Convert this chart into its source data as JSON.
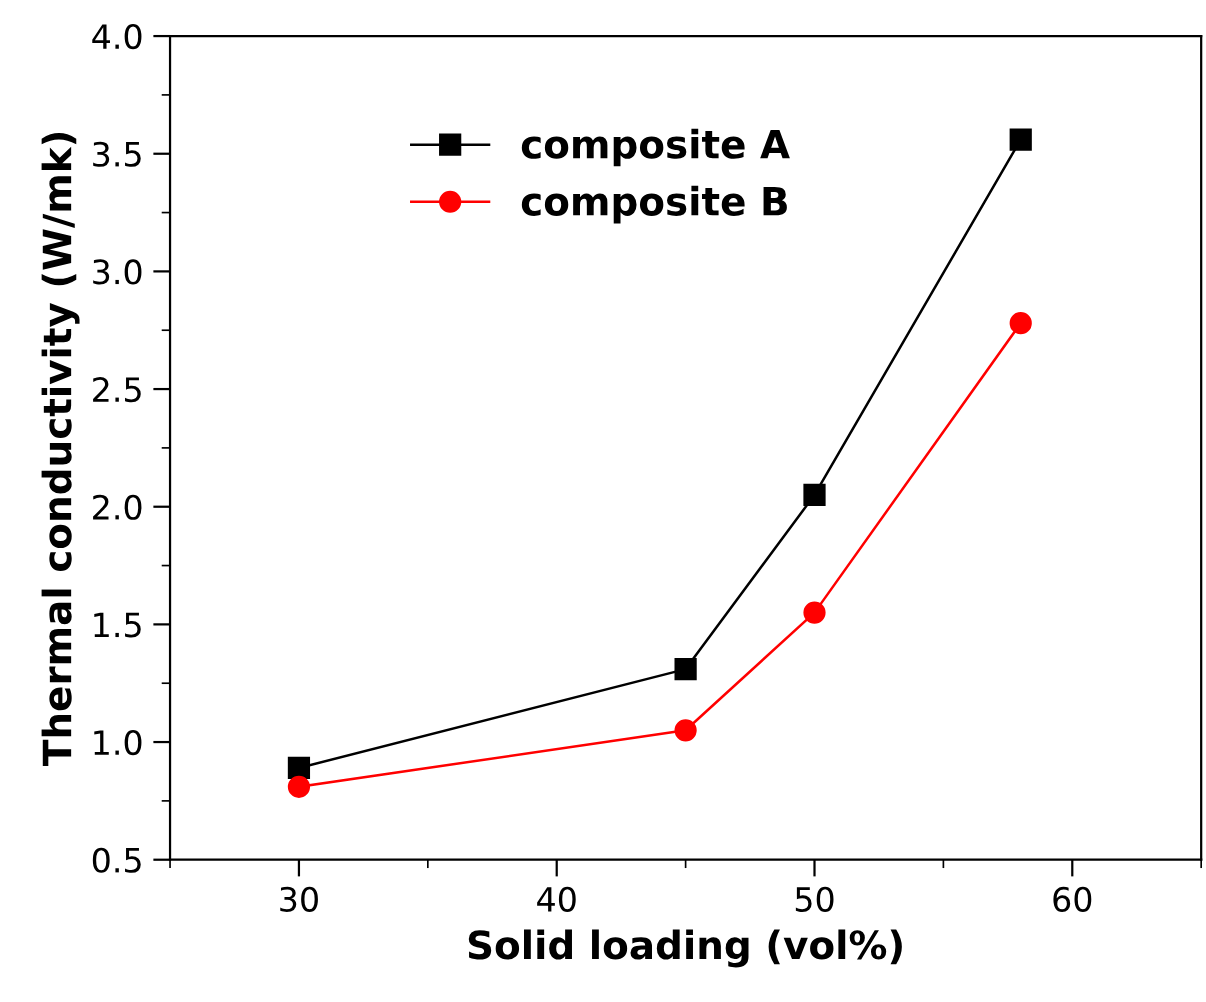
{
  "chart_data": {
    "type": "line",
    "xlabel": "Solid loading (vol%)",
    "ylabel": "Thermal conductivity (W/mk)",
    "x": [
      30,
      45,
      50,
      58
    ],
    "series": [
      {
        "name": "composite A",
        "color": "#000000",
        "marker": "square",
        "values": [
          0.89,
          1.31,
          2.05,
          3.56
        ]
      },
      {
        "name": "composite B",
        "color": "#ff0000",
        "marker": "circle",
        "values": [
          0.81,
          1.05,
          1.55,
          2.78
        ]
      }
    ],
    "xlim": [
      25,
      65
    ],
    "xticks": [
      {
        "value": 25,
        "label": null
      },
      30,
      {
        "value": 35,
        "label": null
      },
      40,
      {
        "value": 45,
        "label": null
      },
      50,
      {
        "value": 55,
        "label": null
      },
      60,
      {
        "value": 65,
        "label": null
      }
    ],
    "ylim": [
      0.5,
      4.0
    ],
    "yticks": [
      {
        "value": 0.5,
        "label": "0.5"
      },
      {
        "value": 0.75,
        "label": null
      },
      {
        "value": 1.0,
        "label": "1.0"
      },
      {
        "value": 1.25,
        "label": null
      },
      {
        "value": 1.5,
        "label": "1.5"
      },
      {
        "value": 1.75,
        "label": null
      },
      {
        "value": 2.0,
        "label": "2.0"
      },
      {
        "value": 2.25,
        "label": null
      },
      {
        "value": 2.5,
        "label": "2.5"
      },
      {
        "value": 2.75,
        "label": null
      },
      {
        "value": 3.0,
        "label": "3.0"
      },
      {
        "value": 3.25,
        "label": null
      },
      {
        "value": 3.5,
        "label": "3.5"
      },
      {
        "value": 3.75,
        "label": null
      },
      {
        "value": 4.0,
        "label": "4.0"
      }
    ],
    "grid": false,
    "legend": "top left",
    "line_style": "solid"
  }
}
